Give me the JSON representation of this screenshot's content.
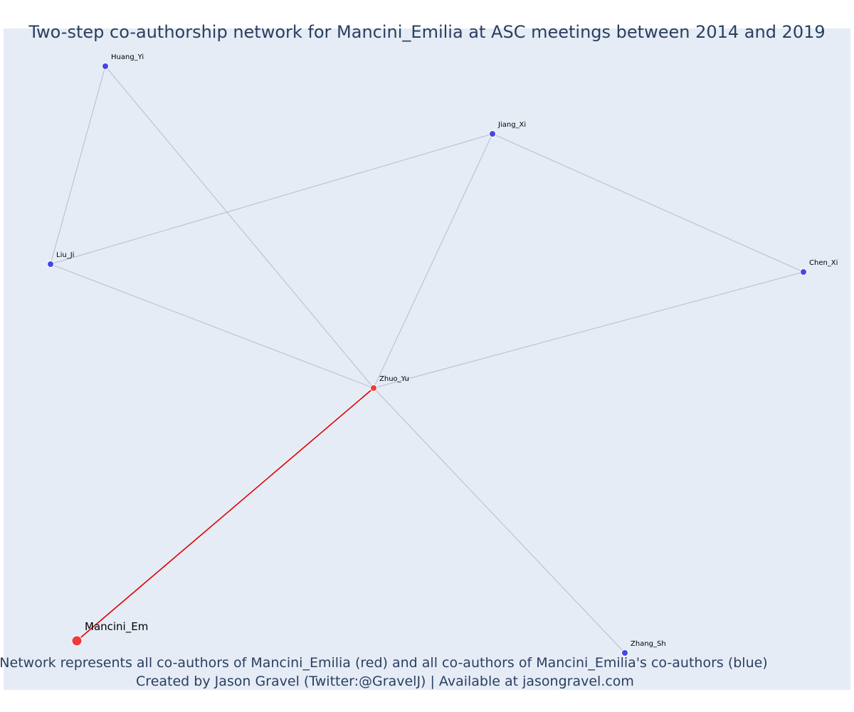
{
  "title": "Two-step co-authorship network for Mancini_Emilia at ASC meetings between 2014 and 2019",
  "caption": {
    "line1": "Network represents all co-authors of Mancini_Emilia (red) and all co-authors of Mancini_Emilia's co-authors (blue)",
    "line2": "Created by Jason Gravel (Twitter:@GravelJ) | Available at jasongravel.com"
  },
  "colors": {
    "background": "#e5ecf6",
    "red": "#ef3b3b",
    "blue": "#4646e6",
    "edge": "#b8bccb",
    "red_edge": "#e00000",
    "text": "#2a3f5f"
  },
  "nodes": [
    {
      "id": "huang",
      "label": "Huang_Yi",
      "color": "blue"
    },
    {
      "id": "jiang",
      "label": "Jiang_Xi",
      "color": "blue"
    },
    {
      "id": "liu",
      "label": "Liu_Ji",
      "color": "blue"
    },
    {
      "id": "chen",
      "label": "Chen_Xi",
      "color": "blue"
    },
    {
      "id": "zhuo",
      "label": "Zhuo_Yu",
      "color": "red"
    },
    {
      "id": "zhang",
      "label": "Zhang_Sh",
      "color": "blue"
    },
    {
      "id": "mancini",
      "label": "Mancini_Em",
      "color": "red"
    }
  ],
  "edges": [
    {
      "source": "huang",
      "target": "liu",
      "color": "edge"
    },
    {
      "source": "huang",
      "target": "zhuo",
      "color": "edge"
    },
    {
      "source": "liu",
      "target": "jiang",
      "color": "edge"
    },
    {
      "source": "liu",
      "target": "zhuo",
      "color": "edge"
    },
    {
      "source": "jiang",
      "target": "zhuo",
      "color": "edge"
    },
    {
      "source": "jiang",
      "target": "chen",
      "color": "edge"
    },
    {
      "source": "chen",
      "target": "zhuo",
      "color": "edge"
    },
    {
      "source": "zhuo",
      "target": "zhang",
      "color": "edge"
    },
    {
      "source": "zhuo",
      "target": "mancini",
      "color": "red_edge"
    }
  ]
}
